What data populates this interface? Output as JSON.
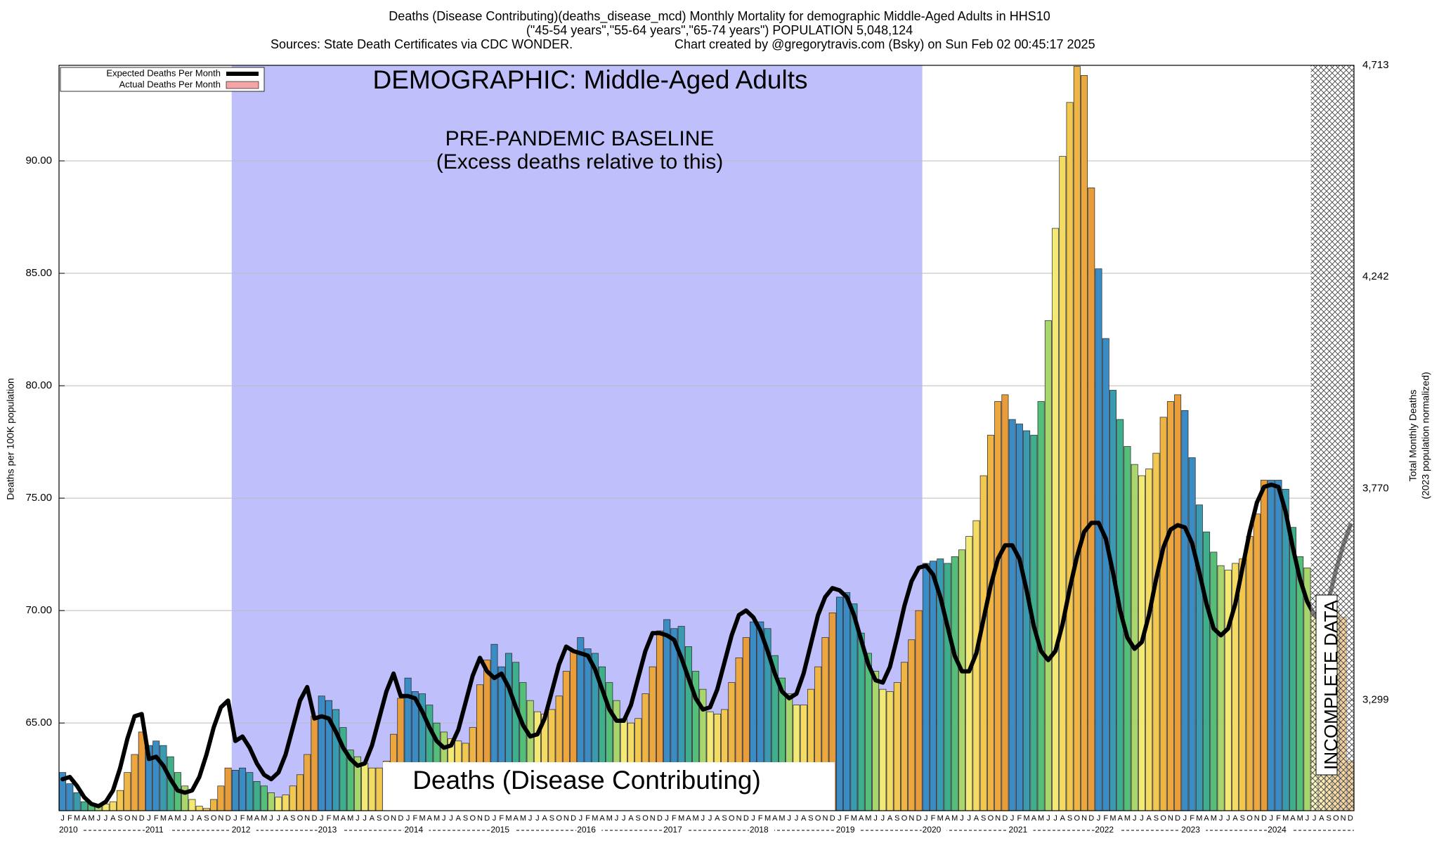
{
  "chart_data": {
    "type": "bar",
    "title": "Deaths (Disease Contributing)(deaths_disease_mcd) Monthly Mortality for demographic Middle-Aged Adults in HHS10",
    "subtitle": "(\"45-54 years\",\"55-64 years\",\"65-74 years\") POPULATION 5,048,124",
    "source": "Sources: State Death Certificates via CDC WONDER.",
    "credit": "Chart created by @gregorytravis.com (Bsky) on Sun Feb 02 00:45:17 2025",
    "y_label": "Deaths per 100K population",
    "y2_label": [
      "Total Monthly Deaths",
      "(2023 population normalized)"
    ],
    "annotations": [
      "DEMOGRAPHIC: Middle-Aged Adults",
      "PRE-PANDEMIC BASELINE",
      "(Excess deaths relative to this)",
      "Deaths (Disease Contributing)",
      "INCOMPLETE DATA"
    ],
    "years": [
      "2010",
      "2011",
      "2012",
      "2013",
      "2014",
      "2015",
      "2016",
      "2017",
      "2018",
      "2019",
      "2020",
      "2021",
      "2022",
      "2023",
      "2024"
    ],
    "categories": [
      "J",
      "F",
      "M",
      "A",
      "M",
      "J",
      "J",
      "A",
      "S",
      "O",
      "N",
      "D",
      "J",
      "F",
      "M",
      "A",
      "M",
      "J",
      "J",
      "A",
      "S",
      "O",
      "N",
      "D",
      "J",
      "F",
      "M",
      "A",
      "M",
      "J",
      "J",
      "A",
      "S",
      "O",
      "N",
      "D",
      "J",
      "F",
      "M",
      "A",
      "M",
      "J",
      "J",
      "A",
      "S",
      "O",
      "N",
      "D",
      "J",
      "F",
      "M",
      "A",
      "M",
      "J",
      "J",
      "A",
      "S",
      "O",
      "N",
      "D",
      "J",
      "F",
      "M",
      "A",
      "M",
      "J",
      "J",
      "A",
      "S",
      "O",
      "N",
      "D",
      "J",
      "F",
      "M",
      "A",
      "M",
      "J",
      "J",
      "A",
      "S",
      "O",
      "N",
      "D",
      "J",
      "F",
      "M",
      "A",
      "M",
      "J",
      "J",
      "A",
      "S",
      "O",
      "N",
      "D",
      "J",
      "F",
      "M",
      "A",
      "M",
      "J",
      "J",
      "A",
      "S",
      "O",
      "N",
      "D",
      "J",
      "F",
      "M",
      "A",
      "M",
      "J",
      "J",
      "A",
      "S",
      "O",
      "N",
      "D",
      "J",
      "F",
      "M",
      "A",
      "M",
      "J",
      "J",
      "A",
      "S",
      "O",
      "N",
      "D",
      "J",
      "F",
      "M",
      "A",
      "M",
      "J",
      "J",
      "A",
      "S",
      "O",
      "N",
      "D",
      "J",
      "F",
      "M",
      "A",
      "M",
      "J",
      "J",
      "A",
      "S",
      "O",
      "N",
      "D",
      "J",
      "F",
      "M",
      "A",
      "M",
      "J",
      "J",
      "A",
      "S",
      "O",
      "N",
      "D",
      "J",
      "F",
      "M",
      "A",
      "M",
      "J",
      "J",
      "A",
      "S",
      "O",
      "N",
      "D"
    ],
    "month_colors": [
      "#3b8cc4",
      "#3b8cc4",
      "#3a9ab0",
      "#3fae8c",
      "#55bf7a",
      "#a9d66c",
      "#f2ea74",
      "#f4dc64",
      "#f2c850",
      "#eeb444",
      "#eca83e",
      "#e99d3a"
    ],
    "series": [
      {
        "name": "Expected Deaths Per Month",
        "type": "line",
        "color": "#000000",
        "values": [
          62.5,
          62.6,
          62.2,
          61.7,
          61.4,
          61.3,
          61.5,
          62.0,
          63.0,
          64.3,
          65.3,
          65.4,
          63.4,
          63.5,
          63.1,
          62.5,
          62.0,
          61.9,
          62.0,
          62.6,
          63.6,
          64.8,
          65.7,
          66.0,
          64.2,
          64.4,
          63.9,
          63.2,
          62.7,
          62.5,
          62.8,
          63.6,
          64.8,
          66.0,
          66.6,
          65.2,
          65.3,
          65.2,
          64.6,
          63.9,
          63.4,
          63.1,
          63.2,
          64.0,
          65.2,
          66.4,
          67.2,
          66.2,
          66.2,
          66.1,
          65.5,
          64.8,
          64.2,
          63.9,
          64.0,
          64.7,
          65.9,
          67.1,
          67.9,
          67.3,
          67.0,
          67.2,
          66.6,
          65.7,
          64.9,
          64.4,
          64.5,
          65.2,
          66.4,
          67.6,
          68.4,
          68.2,
          68.1,
          68.0,
          67.4,
          66.5,
          65.6,
          65.1,
          65.1,
          65.8,
          67.0,
          68.2,
          69.0,
          69.0,
          68.9,
          68.7,
          67.9,
          67.0,
          66.1,
          65.6,
          65.7,
          66.5,
          67.7,
          68.9,
          69.8,
          70.0,
          69.7,
          69.1,
          68.2,
          67.2,
          66.4,
          66.1,
          66.3,
          67.2,
          68.5,
          69.8,
          70.6,
          71.0,
          70.9,
          70.6,
          69.8,
          68.7,
          67.6,
          66.9,
          66.8,
          67.5,
          68.8,
          70.2,
          71.3,
          71.9,
          72.0,
          71.6,
          70.6,
          69.3,
          68.0,
          67.3,
          67.3,
          68.1,
          69.6,
          71.1,
          72.3,
          72.9,
          72.9,
          72.3,
          70.9,
          69.3,
          68.2,
          67.8,
          68.2,
          69.4,
          71.0,
          72.4,
          73.5,
          73.9,
          73.9,
          73.2,
          71.7,
          70.0,
          68.8,
          68.3,
          68.6,
          69.8,
          71.4,
          72.8,
          73.6,
          73.8,
          73.7,
          73.0,
          71.7,
          70.3,
          69.2,
          68.9,
          69.2,
          70.3,
          71.9,
          73.5,
          74.8,
          75.5,
          75.6,
          75.5,
          74.4,
          72.8,
          71.4,
          70.4,
          69.8,
          69.5,
          70.5,
          71.8,
          72.9,
          73.8
        ]
      },
      {
        "name": "Actual Deaths Per Month",
        "type": "bar",
        "color": "#f4a6a6",
        "values": [
          62.8,
          62.3,
          61.9,
          61.5,
          61.4,
          61.3,
          61.4,
          61.5,
          62.0,
          62.8,
          63.6,
          64.6,
          64.0,
          64.2,
          64.0,
          63.5,
          62.8,
          62.2,
          61.6,
          61.3,
          61.2,
          61.6,
          62.2,
          63.0,
          62.9,
          63.0,
          62.8,
          62.4,
          62.2,
          61.9,
          61.7,
          61.8,
          62.2,
          62.7,
          63.6,
          65.3,
          66.2,
          66.0,
          65.6,
          64.8,
          63.8,
          63.5,
          63.2,
          63.0,
          63.0,
          63.3,
          64.5,
          66.1,
          67.0,
          66.4,
          66.3,
          65.8,
          65.0,
          64.6,
          64.3,
          64.2,
          64.1,
          64.8,
          66.7,
          67.8,
          68.5,
          67.5,
          68.1,
          67.7,
          66.8,
          66.0,
          65.5,
          65.4,
          65.6,
          66.2,
          67.3,
          68.2,
          68.8,
          68.3,
          68.1,
          67.5,
          66.8,
          66.0,
          65.2,
          65.0,
          65.2,
          66.3,
          67.5,
          69.1,
          69.6,
          69.2,
          69.3,
          68.4,
          67.3,
          66.5,
          65.5,
          65.4,
          65.6,
          66.8,
          67.9,
          68.8,
          69.5,
          69.5,
          69.2,
          68.0,
          67.0,
          66.3,
          65.8,
          65.8,
          66.5,
          67.5,
          68.8,
          69.9,
          70.6,
          70.8,
          70.3,
          69.0,
          68.1,
          67.3,
          66.5,
          66.4,
          66.8,
          67.7,
          68.7,
          70.0,
          72.1,
          72.2,
          72.3,
          72.1,
          72.4,
          72.7,
          73.3,
          74.0,
          76.0,
          77.8,
          79.3,
          79.6,
          78.5,
          78.3,
          78.0,
          77.8,
          79.3,
          82.9,
          87.0,
          90.2,
          92.6,
          94.2,
          93.8,
          88.8,
          85.2,
          82.1,
          79.8,
          78.5,
          77.3,
          76.5,
          76.0,
          76.3,
          77.0,
          78.6,
          79.3,
          79.6,
          78.9,
          76.8,
          74.7,
          73.5,
          72.6,
          72.0,
          71.8,
          72.1,
          72.3,
          73.3,
          74.3,
          75.8,
          75.8,
          75.8,
          75.4,
          73.7,
          72.4,
          71.9,
          70.0,
          69.8,
          70.2,
          70.0,
          69.7,
          63.3
        ]
      }
    ],
    "ylim": [
      61.1,
      94.25
    ],
    "yticks": [
      {
        "value": 65,
        "label": "65.00"
      },
      {
        "value": 70,
        "label": "70.00"
      },
      {
        "value": 75,
        "label": "75.00"
      },
      {
        "value": 80,
        "label": "80.00"
      },
      {
        "value": 85,
        "label": "85.00"
      },
      {
        "value": 90,
        "label": "90.00"
      }
    ],
    "y2lim": [
      3053,
      4713
    ],
    "y2ticks": [
      {
        "value": 3299,
        "label": "3,299"
      },
      {
        "value": 3770,
        "label": "3,770"
      },
      {
        "value": 4242,
        "label": "4,242"
      },
      {
        "value": 4713,
        "label": "4,713"
      }
    ],
    "grid": true,
    "legend": "upper left"
  }
}
